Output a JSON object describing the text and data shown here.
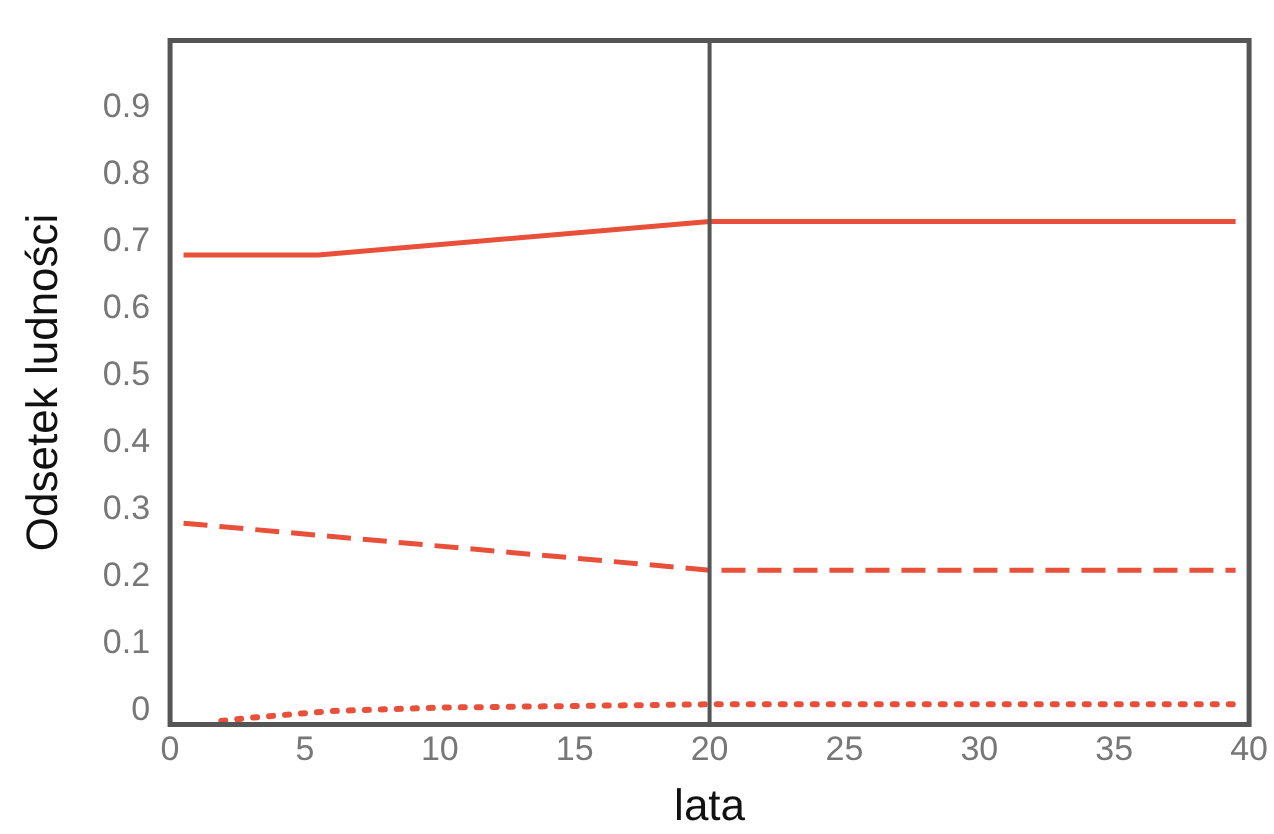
{
  "chart_data": {
    "type": "line",
    "xlabel": "lata",
    "ylabel": "Odsetek ludności",
    "xlim": [
      0,
      40
    ],
    "xticks": [
      0,
      5,
      10,
      15,
      20,
      25,
      30,
      35,
      40
    ],
    "ylim": [
      -0.02,
      1.0
    ],
    "yticks": [
      0,
      0.1,
      0.2,
      0.3,
      0.4,
      0.5,
      0.6,
      0.7,
      0.8,
      0.9
    ],
    "grid": false,
    "legend": false,
    "marker": "none",
    "ref_lines": [
      {
        "axis": "x",
        "value": 20,
        "color": "#555555",
        "line_style": "solid"
      }
    ],
    "series": [
      {
        "color": "#e8503a",
        "line_style": "solid",
        "x": [
          0.5,
          5.5,
          20,
          39.5
        ],
        "values": [
          0.68,
          0.68,
          0.73,
          0.73
        ]
      },
      {
        "color": "#e8503a",
        "line_style": "dashed",
        "x": [
          0.5,
          20,
          39.5
        ],
        "values": [
          0.28,
          0.21,
          0.21
        ]
      },
      {
        "color": "#e8503a",
        "line_style": "dotted",
        "x": [
          1.9,
          3,
          4.5,
          6,
          10,
          20,
          39.5
        ],
        "values": [
          -0.015,
          -0.01,
          -0.005,
          0,
          0.005,
          0.01,
          0.01
        ]
      }
    ]
  }
}
